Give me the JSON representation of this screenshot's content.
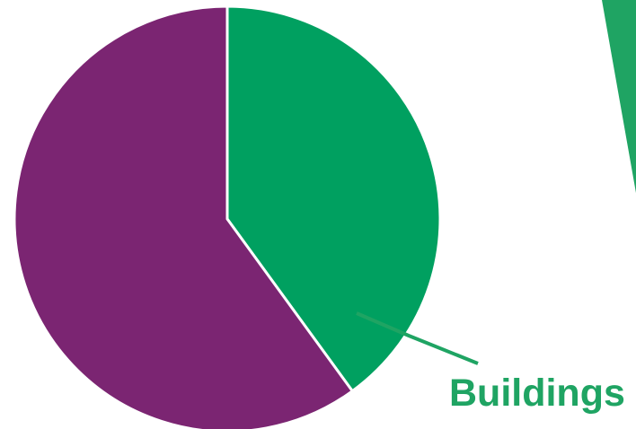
{
  "chart_data": {
    "type": "pie",
    "slices": [
      {
        "label": "Buildings",
        "share": 0.4,
        "color": "#00A060",
        "label_visible": true
      },
      {
        "label": "",
        "share": 0.6,
        "color": "#7B2572",
        "label_visible": false
      }
    ],
    "start_angle_deg": 0,
    "direction": "clockwise",
    "label_color": "#1FA463",
    "accent_color": "#1FA463"
  }
}
